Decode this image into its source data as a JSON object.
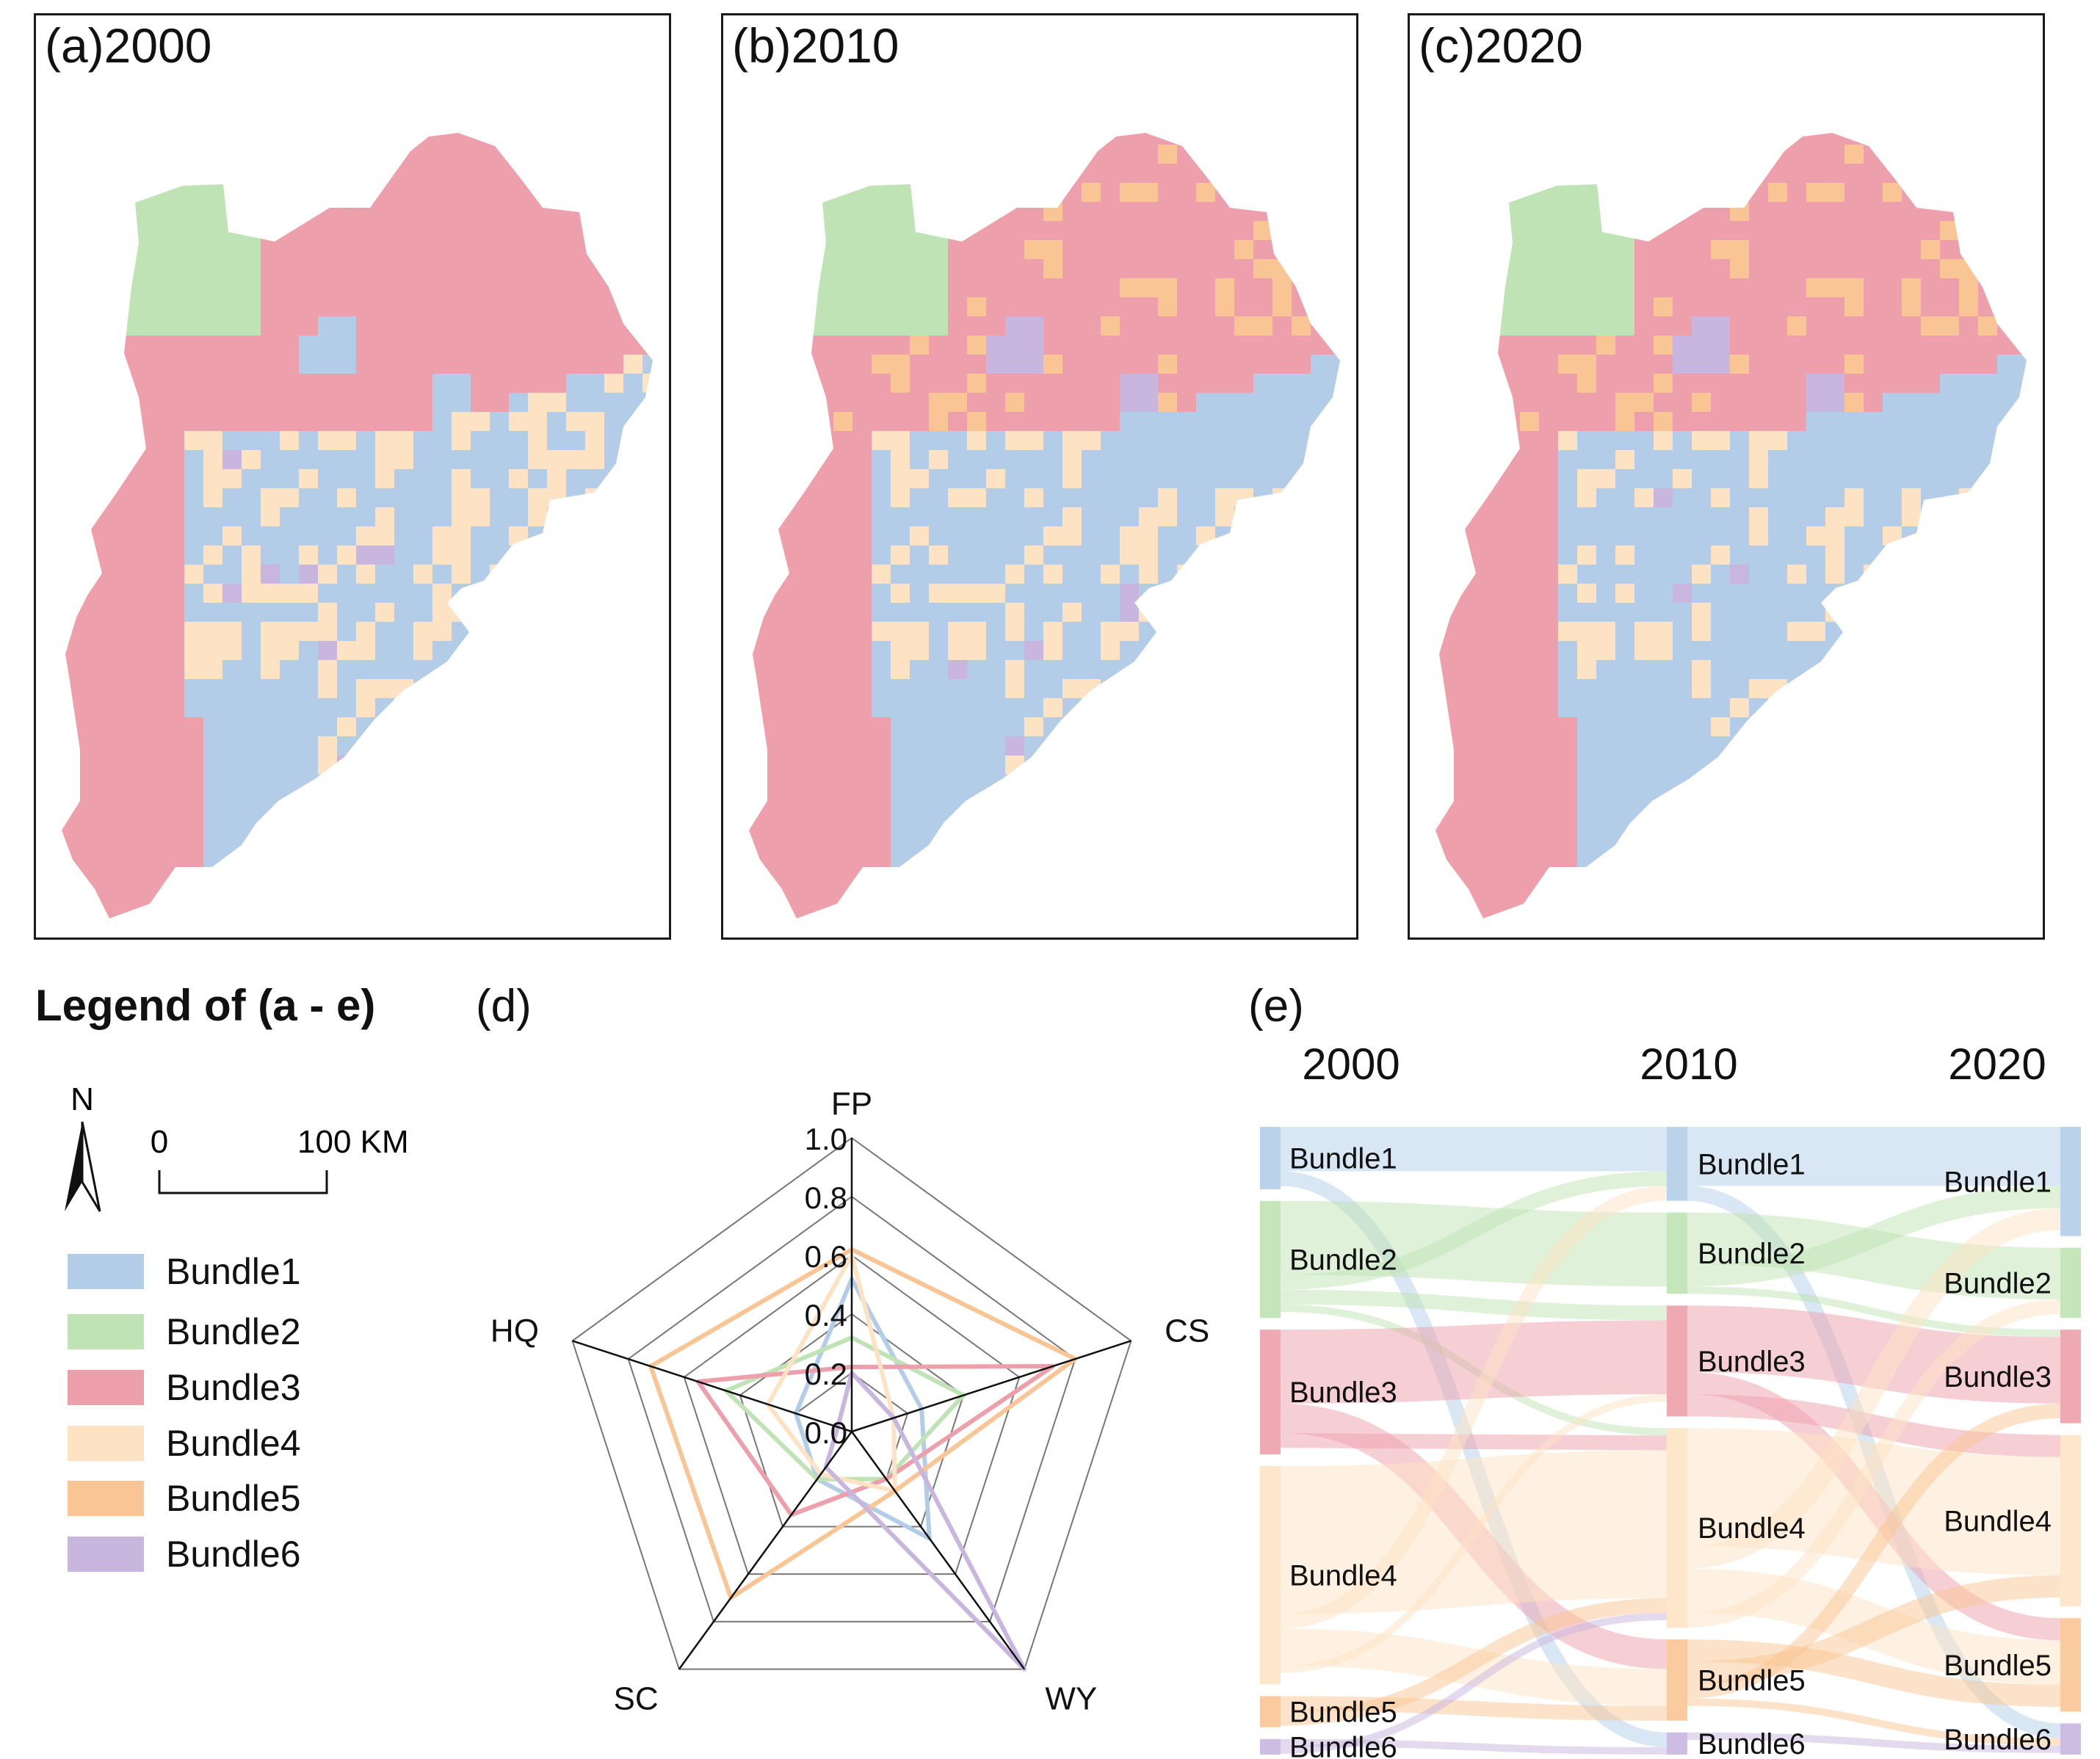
{
  "panels": [
    {
      "label": "(a)2000"
    },
    {
      "label": "(b)2010"
    },
    {
      "label": "(c)2020"
    }
  ],
  "legend": {
    "title": "Legend of (a - e)",
    "north": "N",
    "scale_zero": "0",
    "scale_end": "100 KM",
    "items": [
      {
        "label": "Bundle1",
        "color": "#b3cde8"
      },
      {
        "label": "Bundle2",
        "color": "#bfe3b4"
      },
      {
        "label": "Bundle3",
        "color": "#eda0ab"
      },
      {
        "label": "Bundle4",
        "color": "#fde3c4"
      },
      {
        "label": "Bundle5",
        "color": "#f9c594"
      },
      {
        "label": "Bundle6",
        "color": "#c8b6df"
      }
    ]
  },
  "radar": {
    "label": "(d)",
    "axes": [
      "FP",
      "CS",
      "WY",
      "SC",
      "HQ"
    ],
    "ticks": [
      "0.0",
      "0.2",
      "0.4",
      "0.6",
      "0.8",
      "1.0"
    ]
  },
  "sankey": {
    "label": "(e)",
    "years": [
      "2000",
      "2010",
      "2020"
    ],
    "node_labels": [
      "Bundle1",
      "Bundle2",
      "Bundle3",
      "Bundle4",
      "Bundle5",
      "Bundle6"
    ]
  },
  "chart_data": [
    {
      "type": "map",
      "title": "(a)2000",
      "categories": [
        "Bundle1",
        "Bundle2",
        "Bundle3",
        "Bundle4",
        "Bundle5",
        "Bundle6"
      ]
    },
    {
      "type": "map",
      "title": "(b)2010",
      "categories": [
        "Bundle1",
        "Bundle2",
        "Bundle3",
        "Bundle4",
        "Bundle5",
        "Bundle6"
      ]
    },
    {
      "type": "map",
      "title": "(c)2020",
      "categories": [
        "Bundle1",
        "Bundle2",
        "Bundle3",
        "Bundle4",
        "Bundle5",
        "Bundle6"
      ]
    },
    {
      "type": "radar",
      "title": "(d)",
      "axes": [
        "FP",
        "CS",
        "WY",
        "SC",
        "HQ"
      ],
      "range": [
        0,
        1
      ],
      "series": [
        {
          "name": "Bundle1",
          "color": "#b3cde8",
          "values": [
            0.52,
            0.25,
            0.45,
            0.2,
            0.2
          ]
        },
        {
          "name": "Bundle2",
          "color": "#bfe3b4",
          "values": [
            0.32,
            0.4,
            0.2,
            0.2,
            0.45
          ]
        },
        {
          "name": "Bundle3",
          "color": "#eda0ab",
          "values": [
            0.22,
            0.72,
            0.2,
            0.35,
            0.55
          ]
        },
        {
          "name": "Bundle4",
          "color": "#fde3c4",
          "values": [
            0.6,
            0.15,
            0.25,
            0.18,
            0.3
          ]
        },
        {
          "name": "Bundle5",
          "color": "#f9c594",
          "values": [
            0.62,
            0.8,
            0.25,
            0.7,
            0.72
          ]
        },
        {
          "name": "Bundle6",
          "color": "#c8b6df",
          "values": [
            0.2,
            0.15,
            1.0,
            0.15,
            0.05
          ]
        }
      ]
    },
    {
      "type": "sankey",
      "title": "(e)",
      "stages": [
        "2000",
        "2010",
        "2020"
      ],
      "nodes": [
        "Bundle1",
        "Bundle2",
        "Bundle3",
        "Bundle4",
        "Bundle5",
        "Bundle6"
      ],
      "totals": {
        "2000": [
          8,
          15,
          16,
          28,
          4,
          2
        ],
        "2010": [
          10,
          11,
          15,
          27,
          11,
          3
        ],
        "2020": [
          14,
          9,
          12,
          22,
          12,
          4
        ]
      },
      "flows_2000_2010": [
        [
          0,
          0,
          6
        ],
        [
          0,
          5,
          2
        ],
        [
          1,
          1,
          10
        ],
        [
          1,
          0,
          2
        ],
        [
          1,
          2,
          2
        ],
        [
          1,
          3,
          1
        ],
        [
          2,
          2,
          10
        ],
        [
          2,
          4,
          4
        ],
        [
          2,
          3,
          2
        ],
        [
          3,
          3,
          20
        ],
        [
          3,
          0,
          2
        ],
        [
          3,
          4,
          5
        ],
        [
          3,
          2,
          1
        ],
        [
          4,
          4,
          2
        ],
        [
          4,
          3,
          2
        ],
        [
          5,
          5,
          1
        ],
        [
          5,
          3,
          1
        ]
      ],
      "flows_2010_2020": [
        [
          0,
          0,
          8
        ],
        [
          0,
          5,
          2
        ],
        [
          1,
          1,
          7
        ],
        [
          1,
          0,
          3
        ],
        [
          1,
          2,
          1
        ],
        [
          2,
          2,
          9
        ],
        [
          2,
          4,
          3
        ],
        [
          2,
          3,
          3
        ],
        [
          3,
          3,
          16
        ],
        [
          3,
          0,
          3
        ],
        [
          3,
          4,
          6
        ],
        [
          3,
          1,
          2
        ],
        [
          4,
          4,
          3
        ],
        [
          4,
          3,
          3
        ],
        [
          4,
          2,
          2
        ],
        [
          4,
          5,
          1
        ],
        [
          5,
          5,
          1
        ],
        [
          5,
          1,
          0
        ],
        [
          5,
          3,
          0
        ]
      ]
    }
  ]
}
